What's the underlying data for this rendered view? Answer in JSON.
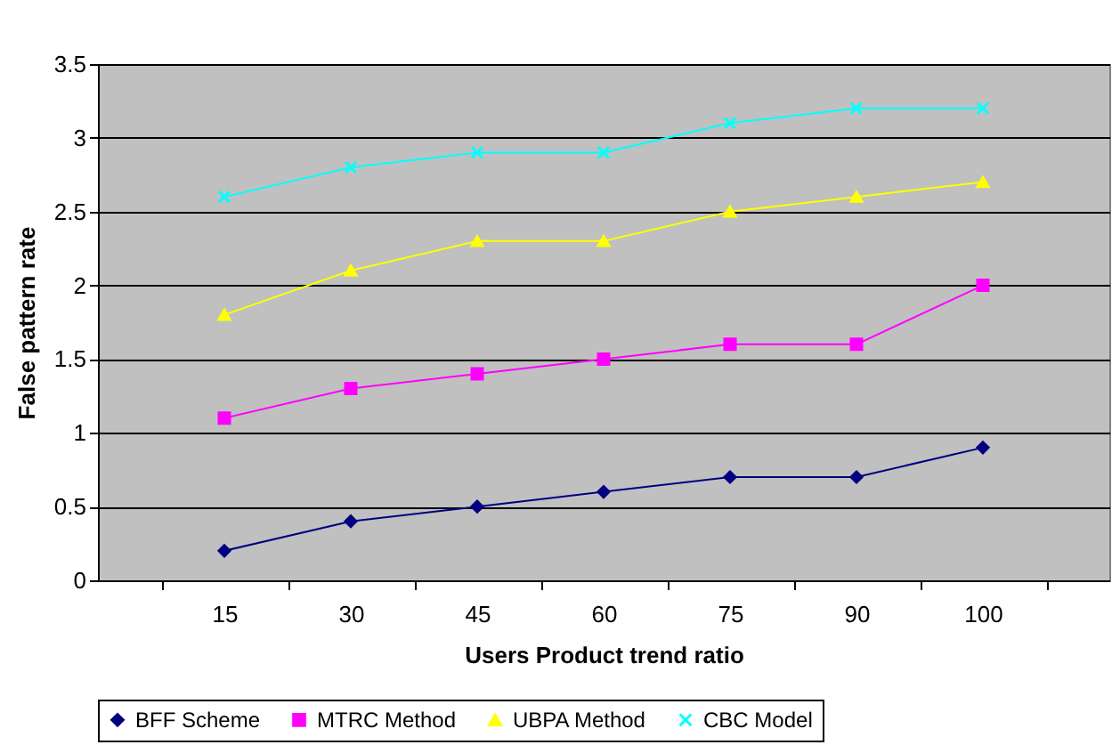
{
  "chart_data": {
    "type": "line",
    "xlabel": "Users Product trend ratio",
    "ylabel": "False pattern rate",
    "categories": [
      "15",
      "30",
      "45",
      "60",
      "75",
      "90",
      "100"
    ],
    "series": [
      {
        "name": "BFF Scheme",
        "color": "#000080",
        "marker": "diamond",
        "values": [
          0.2,
          0.4,
          0.5,
          0.6,
          0.7,
          0.7,
          0.9
        ]
      },
      {
        "name": "MTRC Method",
        "color": "#ff00ff",
        "marker": "square",
        "values": [
          1.1,
          1.3,
          1.4,
          1.5,
          1.6,
          1.6,
          2.0
        ]
      },
      {
        "name": "UBPA Method",
        "color": "#ffff00",
        "marker": "triangle",
        "values": [
          1.8,
          2.1,
          2.3,
          2.3,
          2.5,
          2.6,
          2.7
        ]
      },
      {
        "name": "CBC Model",
        "color": "#00ffff",
        "marker": "cross",
        "values": [
          2.6,
          2.8,
          2.9,
          2.9,
          3.1,
          3.2,
          3.2
        ]
      }
    ],
    "ylim": [
      0,
      3.5
    ],
    "yticks": [
      0,
      0.5,
      1,
      1.5,
      2,
      2.5,
      3,
      3.5
    ],
    "grid": "y",
    "legend": "bottom"
  }
}
